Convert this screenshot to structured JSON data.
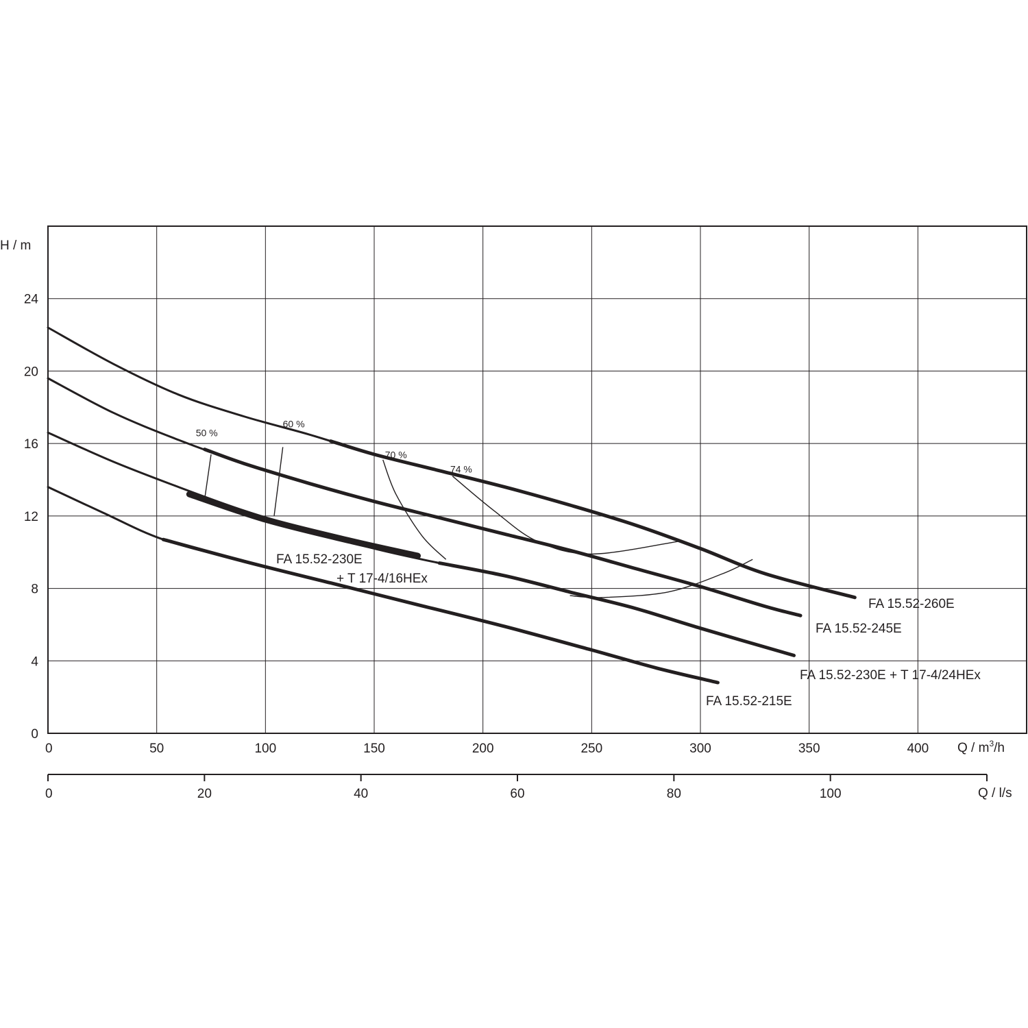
{
  "chart_data": {
    "type": "line",
    "title": "",
    "xlabel": "Q / m³/h",
    "xlabel_parts": {
      "prefix": "Q / m",
      "sup": "3",
      "suffix": "/h"
    },
    "ylabel": "H / m",
    "xlim": [
      0,
      450
    ],
    "ylim": [
      0,
      28
    ],
    "x_ticks": [
      0,
      50,
      100,
      150,
      200,
      250,
      300,
      350,
      400
    ],
    "y_ticks": [
      0,
      4,
      8,
      12,
      16,
      20,
      24
    ],
    "grid": true,
    "secondary_x_axis": {
      "label": "Q / l/s",
      "lim": [
        0,
        125
      ],
      "ticks": [
        0,
        20,
        40,
        60,
        80,
        100
      ]
    },
    "series": [
      {
        "name": "FA 15.52-260E",
        "curve": [
          [
            0,
            22.4
          ],
          [
            30,
            20.4
          ],
          [
            60,
            18.7
          ],
          [
            90,
            17.5
          ],
          [
            120,
            16.5
          ],
          [
            150,
            15.4
          ],
          [
            180,
            14.5
          ],
          [
            210,
            13.6
          ],
          [
            240,
            12.6
          ],
          [
            270,
            11.5
          ],
          [
            300,
            10.2
          ],
          [
            330,
            8.8
          ],
          [
            371,
            7.5
          ]
        ],
        "duty": [
          [
            130,
            15.9
          ],
          [
            371,
            7.5
          ]
        ]
      },
      {
        "name": "FA 15.52-245E",
        "curve": [
          [
            0,
            19.6
          ],
          [
            30,
            17.7
          ],
          [
            60,
            16.2
          ],
          [
            90,
            14.9
          ],
          [
            120,
            13.8
          ],
          [
            150,
            12.8
          ],
          [
            180,
            11.9
          ],
          [
            210,
            11.0
          ],
          [
            240,
            10.1
          ],
          [
            270,
            9.1
          ],
          [
            300,
            8.1
          ],
          [
            330,
            7.0
          ],
          [
            346,
            6.5
          ]
        ],
        "duty": [
          [
            72,
            15.4
          ],
          [
            346,
            6.5
          ]
        ]
      },
      {
        "name": "FA 15.52-230E + T 17-4/24HEx",
        "curve": [
          [
            0,
            16.6
          ],
          [
            30,
            15.0
          ],
          [
            60,
            13.6
          ],
          [
            90,
            12.3
          ],
          [
            120,
            11.2
          ],
          [
            150,
            10.2
          ],
          [
            180,
            9.4
          ],
          [
            210,
            8.7
          ],
          [
            240,
            7.8
          ],
          [
            270,
            6.9
          ],
          [
            300,
            5.8
          ],
          [
            343,
            4.3
          ]
        ],
        "duty": [
          [
            180,
            9.4
          ],
          [
            343,
            4.3
          ]
        ]
      },
      {
        "name": "FA 15.52-230E\n+ T 17-4/16HEx",
        "label_lines": [
          "FA 15.52-230E",
          "+ T 17-4/16HEx"
        ],
        "curve": [
          [
            65,
            13.2
          ],
          [
            100,
            11.8
          ],
          [
            140,
            10.6
          ],
          [
            170,
            9.8
          ]
        ],
        "duty": [
          [
            65,
            13.2
          ],
          [
            170,
            9.8
          ]
        ]
      },
      {
        "name": "FA 15.52-215E",
        "curve": [
          [
            0,
            13.6
          ],
          [
            25,
            12.2
          ],
          [
            53,
            10.7
          ],
          [
            90,
            9.5
          ],
          [
            130,
            8.3
          ],
          [
            170,
            7.1
          ],
          [
            210,
            5.9
          ],
          [
            250,
            4.6
          ],
          [
            280,
            3.6
          ],
          [
            308,
            2.8
          ]
        ],
        "duty": [
          [
            53,
            10.7
          ],
          [
            308,
            2.8
          ]
        ]
      }
    ],
    "efficiency_curves": [
      {
        "label": "50 %",
        "label_at": [
          73,
          16.4
        ],
        "points": [
          [
            75,
            15.4
          ],
          [
            72,
            12.9
          ]
        ]
      },
      {
        "label": "60 %",
        "label_at": [
          113,
          16.9
        ],
        "points": [
          [
            108,
            15.8
          ],
          [
            104,
            12.0
          ]
        ]
      },
      {
        "label": "70 %",
        "label_at": [
          160,
          15.2
        ],
        "points": [
          [
            154,
            15.1
          ],
          [
            160,
            13.2
          ],
          [
            172,
            10.9
          ],
          [
            183,
            9.6
          ]
        ]
      },
      {
        "label": "74 %",
        "label_at": [
          190,
          14.4
        ],
        "points": [
          [
            186,
            14.2
          ],
          [
            205,
            12.3
          ],
          [
            225,
            10.6
          ],
          [
            250,
            9.9
          ],
          [
            290,
            10.6
          ]
        ]
      },
      {
        "label": "",
        "label_at": null,
        "points": [
          [
            240,
            7.6
          ],
          [
            255,
            7.5
          ],
          [
            285,
            7.8
          ],
          [
            310,
            8.8
          ],
          [
            324,
            9.6
          ]
        ]
      }
    ]
  }
}
